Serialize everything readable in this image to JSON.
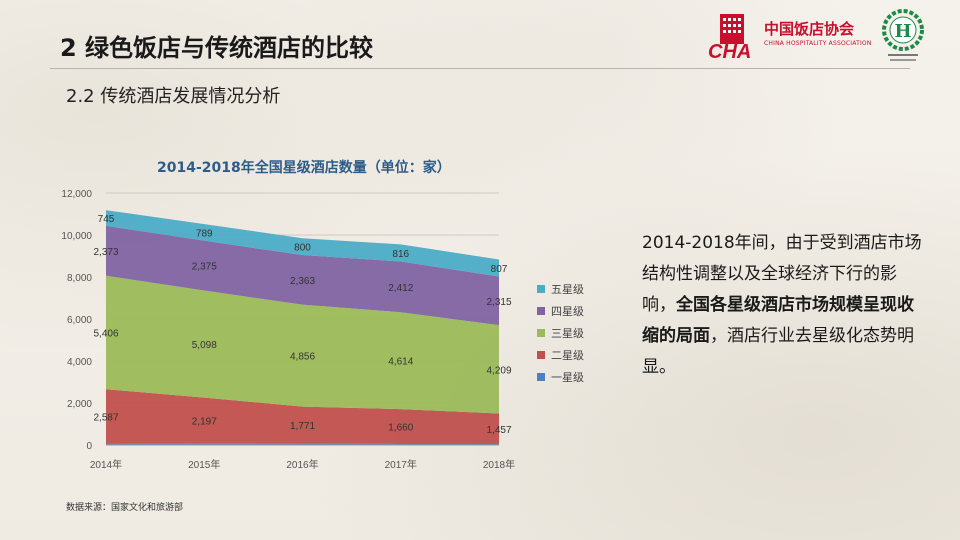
{
  "header": {
    "title": "2 绿色饭店与传统酒店的比较",
    "subtitle": "2.2 传统酒店发展情况分析"
  },
  "logos": {
    "cha_cn": "中国饭店协会",
    "cha_en": "CHINA HOSPITALITY ASSOCIATION",
    "cha_mark": "CHA",
    "h_letter": "H"
  },
  "body": {
    "text_1": "2014-2018年间，由于受到酒店市场结构性调整以及全球经济下行的影响，",
    "text_bold": "全国各星级酒店市场规模呈现收缩的局面",
    "text_2": "，酒店行业去星级化态势明显。"
  },
  "source_note": "数据来源：国家文化和旅游部",
  "colors": {
    "five_star": "#4bacc6",
    "four_star": "#8064a2",
    "three_star": "#9bbb59",
    "two_star": "#c0504d",
    "one_star": "#4f81bd",
    "title_blue": "#2e5c8a",
    "logo_red": "#c8102e",
    "logo_green": "#1d8a45"
  },
  "chart_data": {
    "type": "area",
    "stacked": true,
    "title": "2014-2018年全国星级酒店数量（单位：家）",
    "categories": [
      "2014年",
      "2015年",
      "2016年",
      "2017年",
      "2018年"
    ],
    "ylim": [
      0,
      12000
    ],
    "yticks": [
      0,
      2000,
      4000,
      6000,
      8000,
      10000,
      12000
    ],
    "ytick_labels": [
      "0",
      "2,000",
      "4,000",
      "6,000",
      "8,000",
      "10,000",
      "12,000"
    ],
    "grid": true,
    "legend_position": "right",
    "series": [
      {
        "name": "一星级",
        "values": [
          70,
          60,
          55,
          50,
          45
        ],
        "labels": [
          "",
          "",
          "",
          "",
          ""
        ]
      },
      {
        "name": "二星级",
        "values": [
          2587,
          2197,
          1771,
          1660,
          1457
        ],
        "labels": [
          "2,587",
          "2,197",
          "1,771",
          "1,660",
          "1,457"
        ]
      },
      {
        "name": "三星级",
        "values": [
          5406,
          5098,
          4856,
          4614,
          4209
        ],
        "labels": [
          "5,406",
          "5,098",
          "4,856",
          "4,614",
          "4,209"
        ]
      },
      {
        "name": "四星级",
        "values": [
          2373,
          2375,
          2363,
          2412,
          2315
        ],
        "labels": [
          "2,373",
          "2,375",
          "2,363",
          "2,412",
          "2,315"
        ]
      },
      {
        "name": "五星级",
        "values": [
          745,
          789,
          800,
          816,
          807
        ],
        "labels": [
          "745",
          "789",
          "800",
          "816",
          "807"
        ]
      }
    ]
  }
}
